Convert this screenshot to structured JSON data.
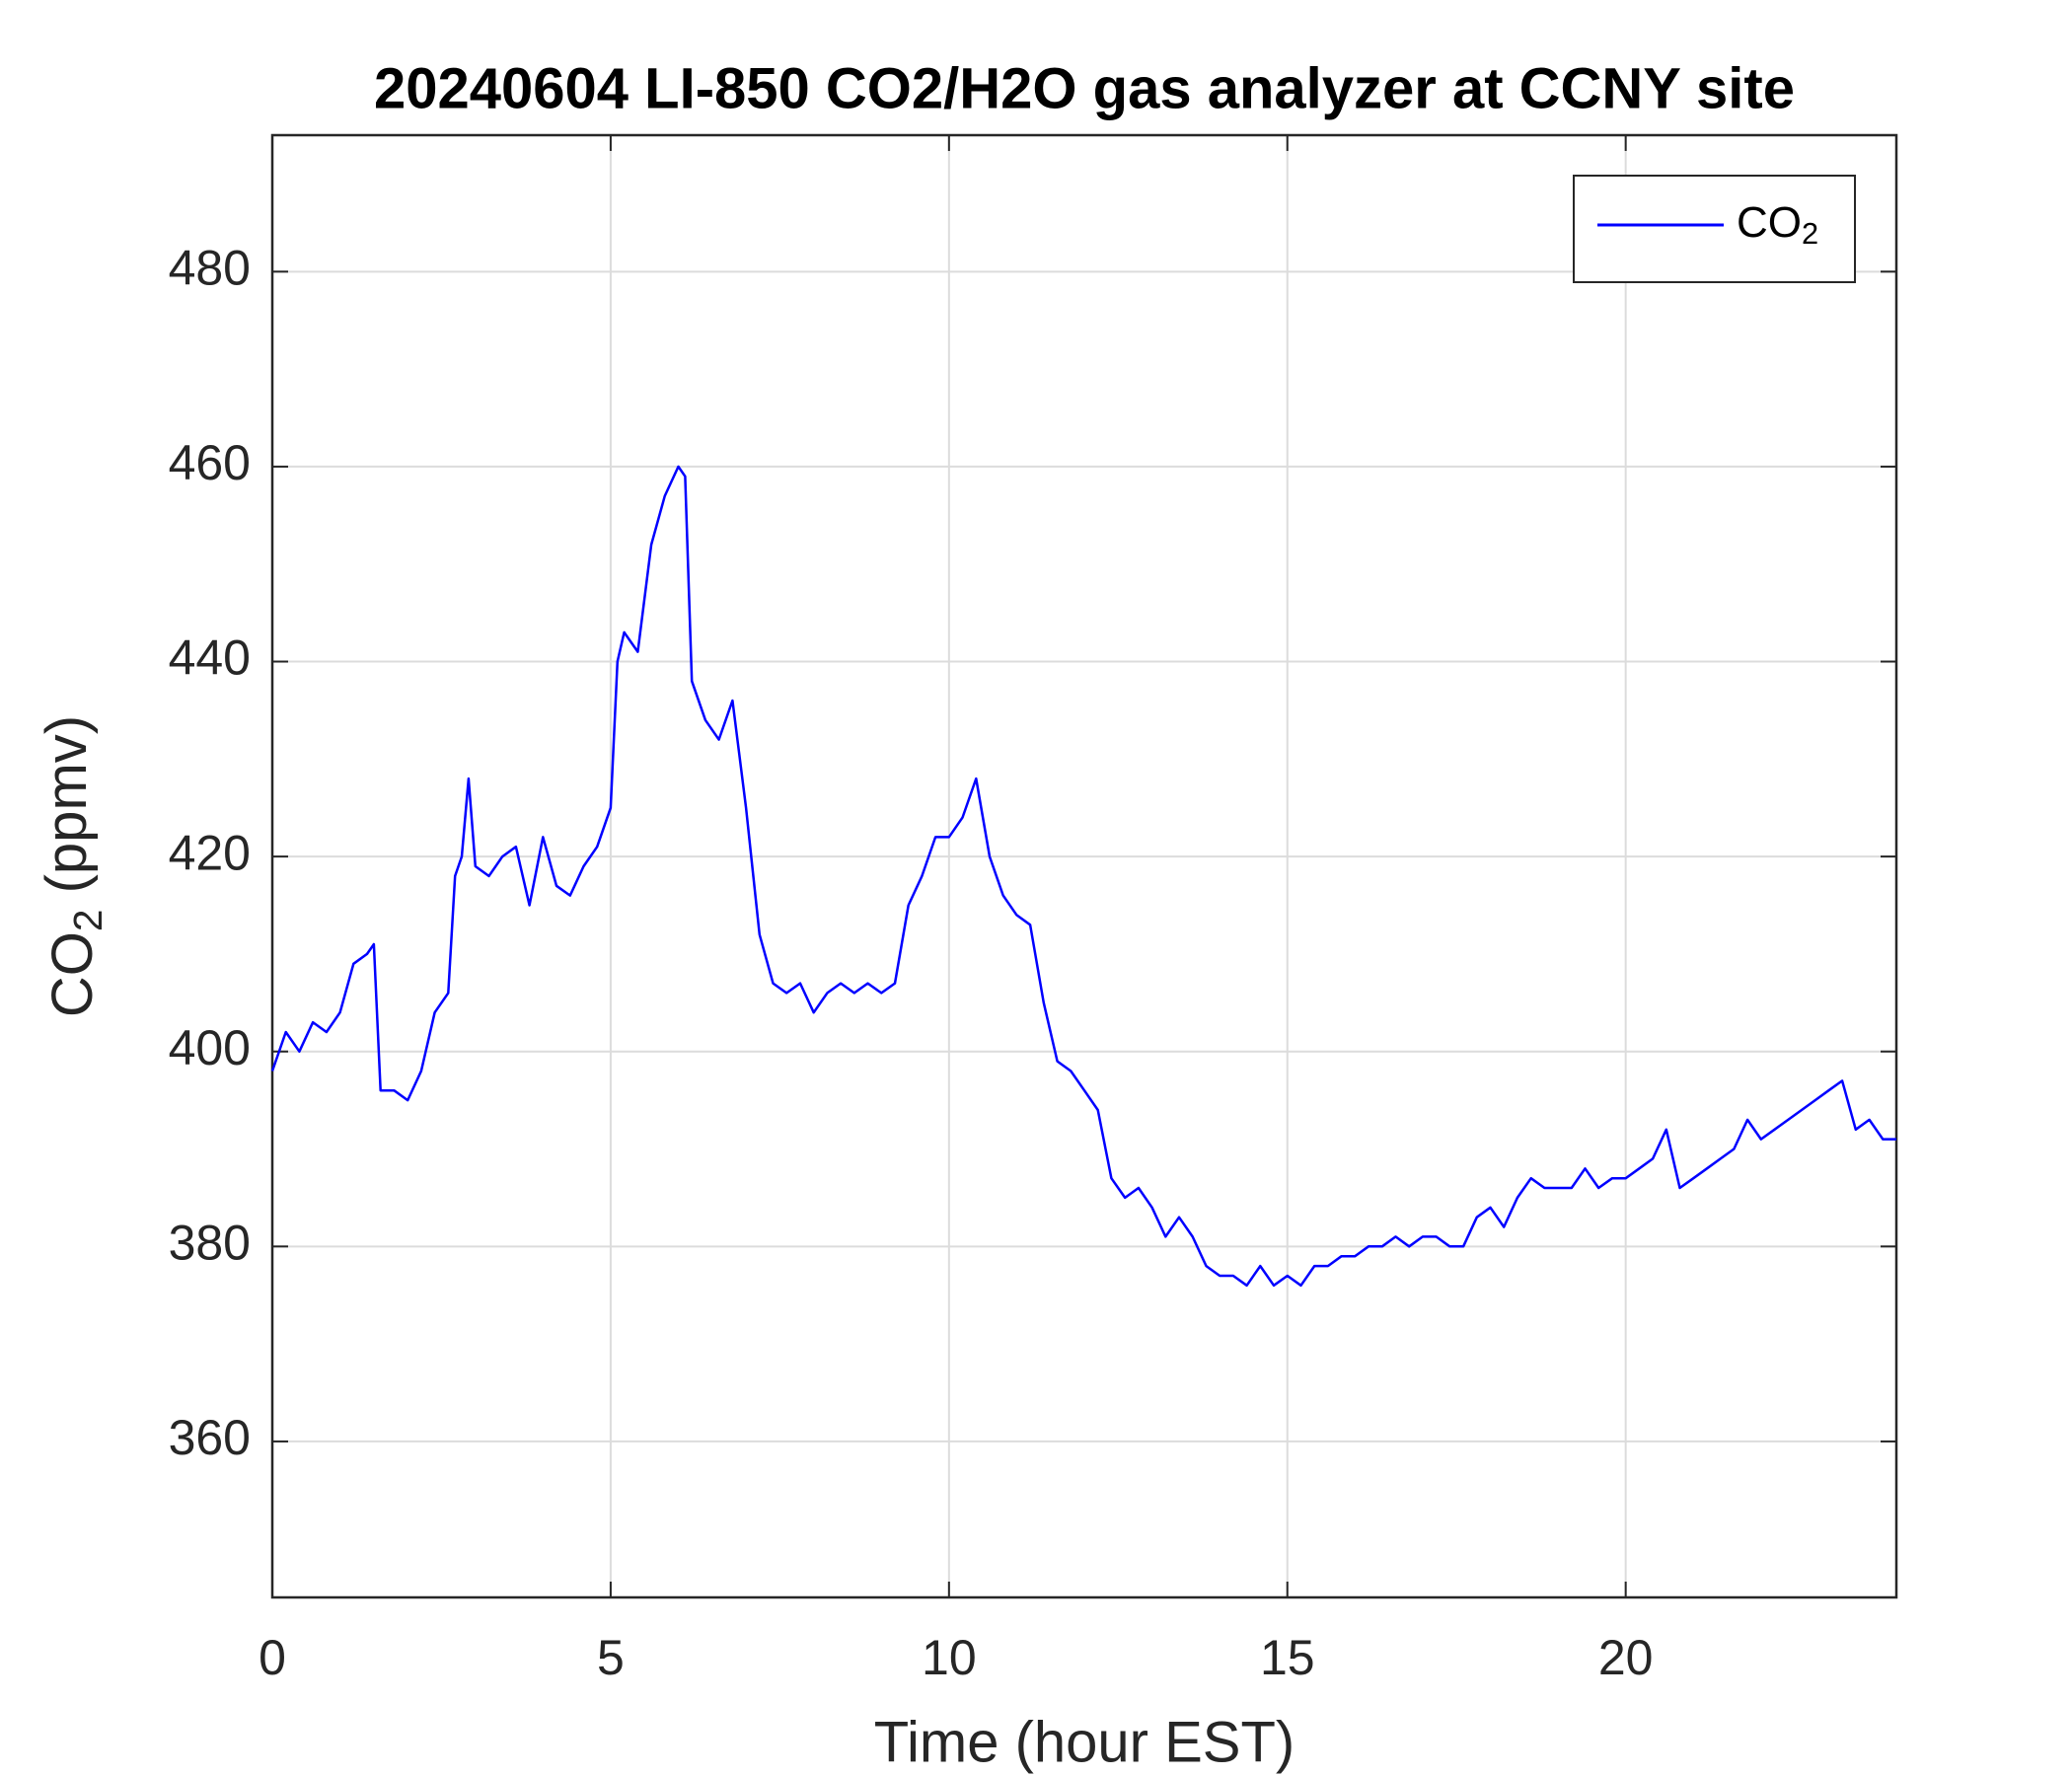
{
  "chart_data": {
    "type": "line",
    "title": "20240604 LI-850 CO2/H2O gas analyzer at CCNY site",
    "xlabel": "Time (hour EST)",
    "ylabel": "CO2 (ppmv)",
    "x": [
      0,
      0.2,
      0.4,
      0.6,
      0.8,
      1.0,
      1.2,
      1.4,
      1.5,
      1.6,
      1.8,
      2.0,
      2.2,
      2.4,
      2.6,
      2.7,
      2.8,
      2.9,
      3.0,
      3.2,
      3.4,
      3.6,
      3.8,
      4.0,
      4.2,
      4.4,
      4.6,
      4.8,
      5.0,
      5.1,
      5.2,
      5.4,
      5.6,
      5.8,
      6.0,
      6.1,
      6.2,
      6.4,
      6.6,
      6.8,
      7.0,
      7.2,
      7.4,
      7.6,
      7.8,
      8.0,
      8.2,
      8.4,
      8.6,
      8.8,
      9.0,
      9.2,
      9.4,
      9.6,
      9.8,
      10.0,
      10.2,
      10.4,
      10.6,
      10.8,
      11.0,
      11.2,
      11.4,
      11.6,
      11.8,
      12.0,
      12.2,
      12.4,
      12.6,
      12.8,
      13.0,
      13.2,
      13.4,
      13.6,
      13.8,
      14.0,
      14.2,
      14.4,
      14.6,
      14.8,
      15.0,
      15.2,
      15.4,
      15.6,
      15.8,
      16.0,
      16.2,
      16.4,
      16.6,
      16.8,
      17.0,
      17.2,
      17.4,
      17.6,
      17.8,
      18.0,
      18.2,
      18.4,
      18.6,
      18.8,
      19.0,
      19.2,
      19.4,
      19.6,
      19.8,
      20.0,
      20.2,
      20.4,
      20.6,
      20.8,
      21.0,
      21.2,
      21.4,
      21.6,
      21.8,
      22.0,
      22.2,
      22.4,
      22.6,
      22.8,
      23.0,
      23.2,
      23.4,
      23.6,
      23.8,
      24.0
    ],
    "series": [
      {
        "name": "CO2",
        "color": "#0000ff",
        "values": [
          398,
          402,
          400,
          403,
          402,
          404,
          409,
          410,
          411,
          396,
          396,
          395,
          398,
          404,
          406,
          418,
          420,
          428,
          419,
          418,
          420,
          421,
          415,
          422,
          417,
          416,
          419,
          421,
          425,
          440,
          443,
          441,
          452,
          457,
          460,
          459,
          438,
          434,
          432,
          436,
          425,
          412,
          407,
          406,
          407,
          404,
          406,
          407,
          406,
          407,
          406,
          407,
          415,
          418,
          422,
          422,
          424,
          428,
          420,
          416,
          414,
          413,
          405,
          399,
          398,
          396,
          394,
          387,
          385,
          386,
          384,
          381,
          383,
          381,
          378,
          377,
          377,
          376,
          378,
          376,
          377,
          376,
          378,
          378,
          379,
          379,
          380,
          380,
          381,
          380,
          381,
          381,
          380,
          380,
          383,
          384,
          382,
          385,
          387,
          386,
          386,
          386,
          388,
          386,
          387,
          387,
          388,
          389,
          392,
          386,
          387,
          388,
          389,
          390,
          393,
          391,
          392,
          393,
          394,
          395,
          396,
          397,
          392,
          393,
          391,
          391
        ]
      }
    ],
    "xlim": [
      0,
      24
    ],
    "xticks": [
      0,
      5,
      10,
      15,
      20
    ],
    "ylim": [
      344,
      494
    ],
    "yticks": [
      360,
      380,
      400,
      420,
      440,
      460,
      480
    ],
    "grid": true,
    "legend": "upper right"
  }
}
